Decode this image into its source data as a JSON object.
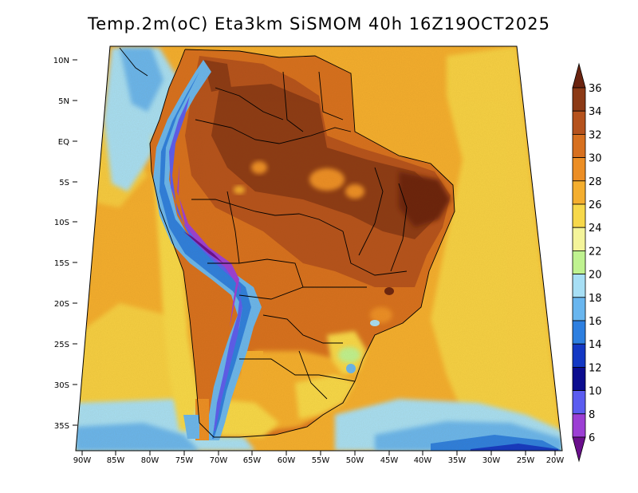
{
  "title": "Temp.2m(oC) Eta3km SiSMOM 40h 16Z19OCT2025",
  "axes": {
    "lat_labels": [
      "10N",
      "5N",
      "EQ",
      "5S",
      "10S",
      "15S",
      "20S",
      "25S",
      "30S",
      "35S"
    ],
    "lon_labels": [
      "90W",
      "85W",
      "80W",
      "75W",
      "70W",
      "65W",
      "60W",
      "55W",
      "50W",
      "45W",
      "40W",
      "35W",
      "30W",
      "25W",
      "20W"
    ]
  },
  "colorbar": {
    "labels": [
      "36",
      "34",
      "32",
      "30",
      "28",
      "26",
      "24",
      "22",
      "20",
      "18",
      "16",
      "14",
      "12",
      "10",
      "8",
      "6"
    ],
    "colors": [
      "#6b2410",
      "#8c3a16",
      "#b5521d",
      "#d7701f",
      "#ec8e25",
      "#f4ae2f",
      "#f7d84a",
      "#f4f49a",
      "#bff290",
      "#a7dff5",
      "#69b6ef",
      "#2d7fe0",
      "#1338c4",
      "#0c0d8f",
      "#5b5cf0",
      "#9c3fd4",
      "#6a0f8c"
    ],
    "unit": "oC"
  }
}
